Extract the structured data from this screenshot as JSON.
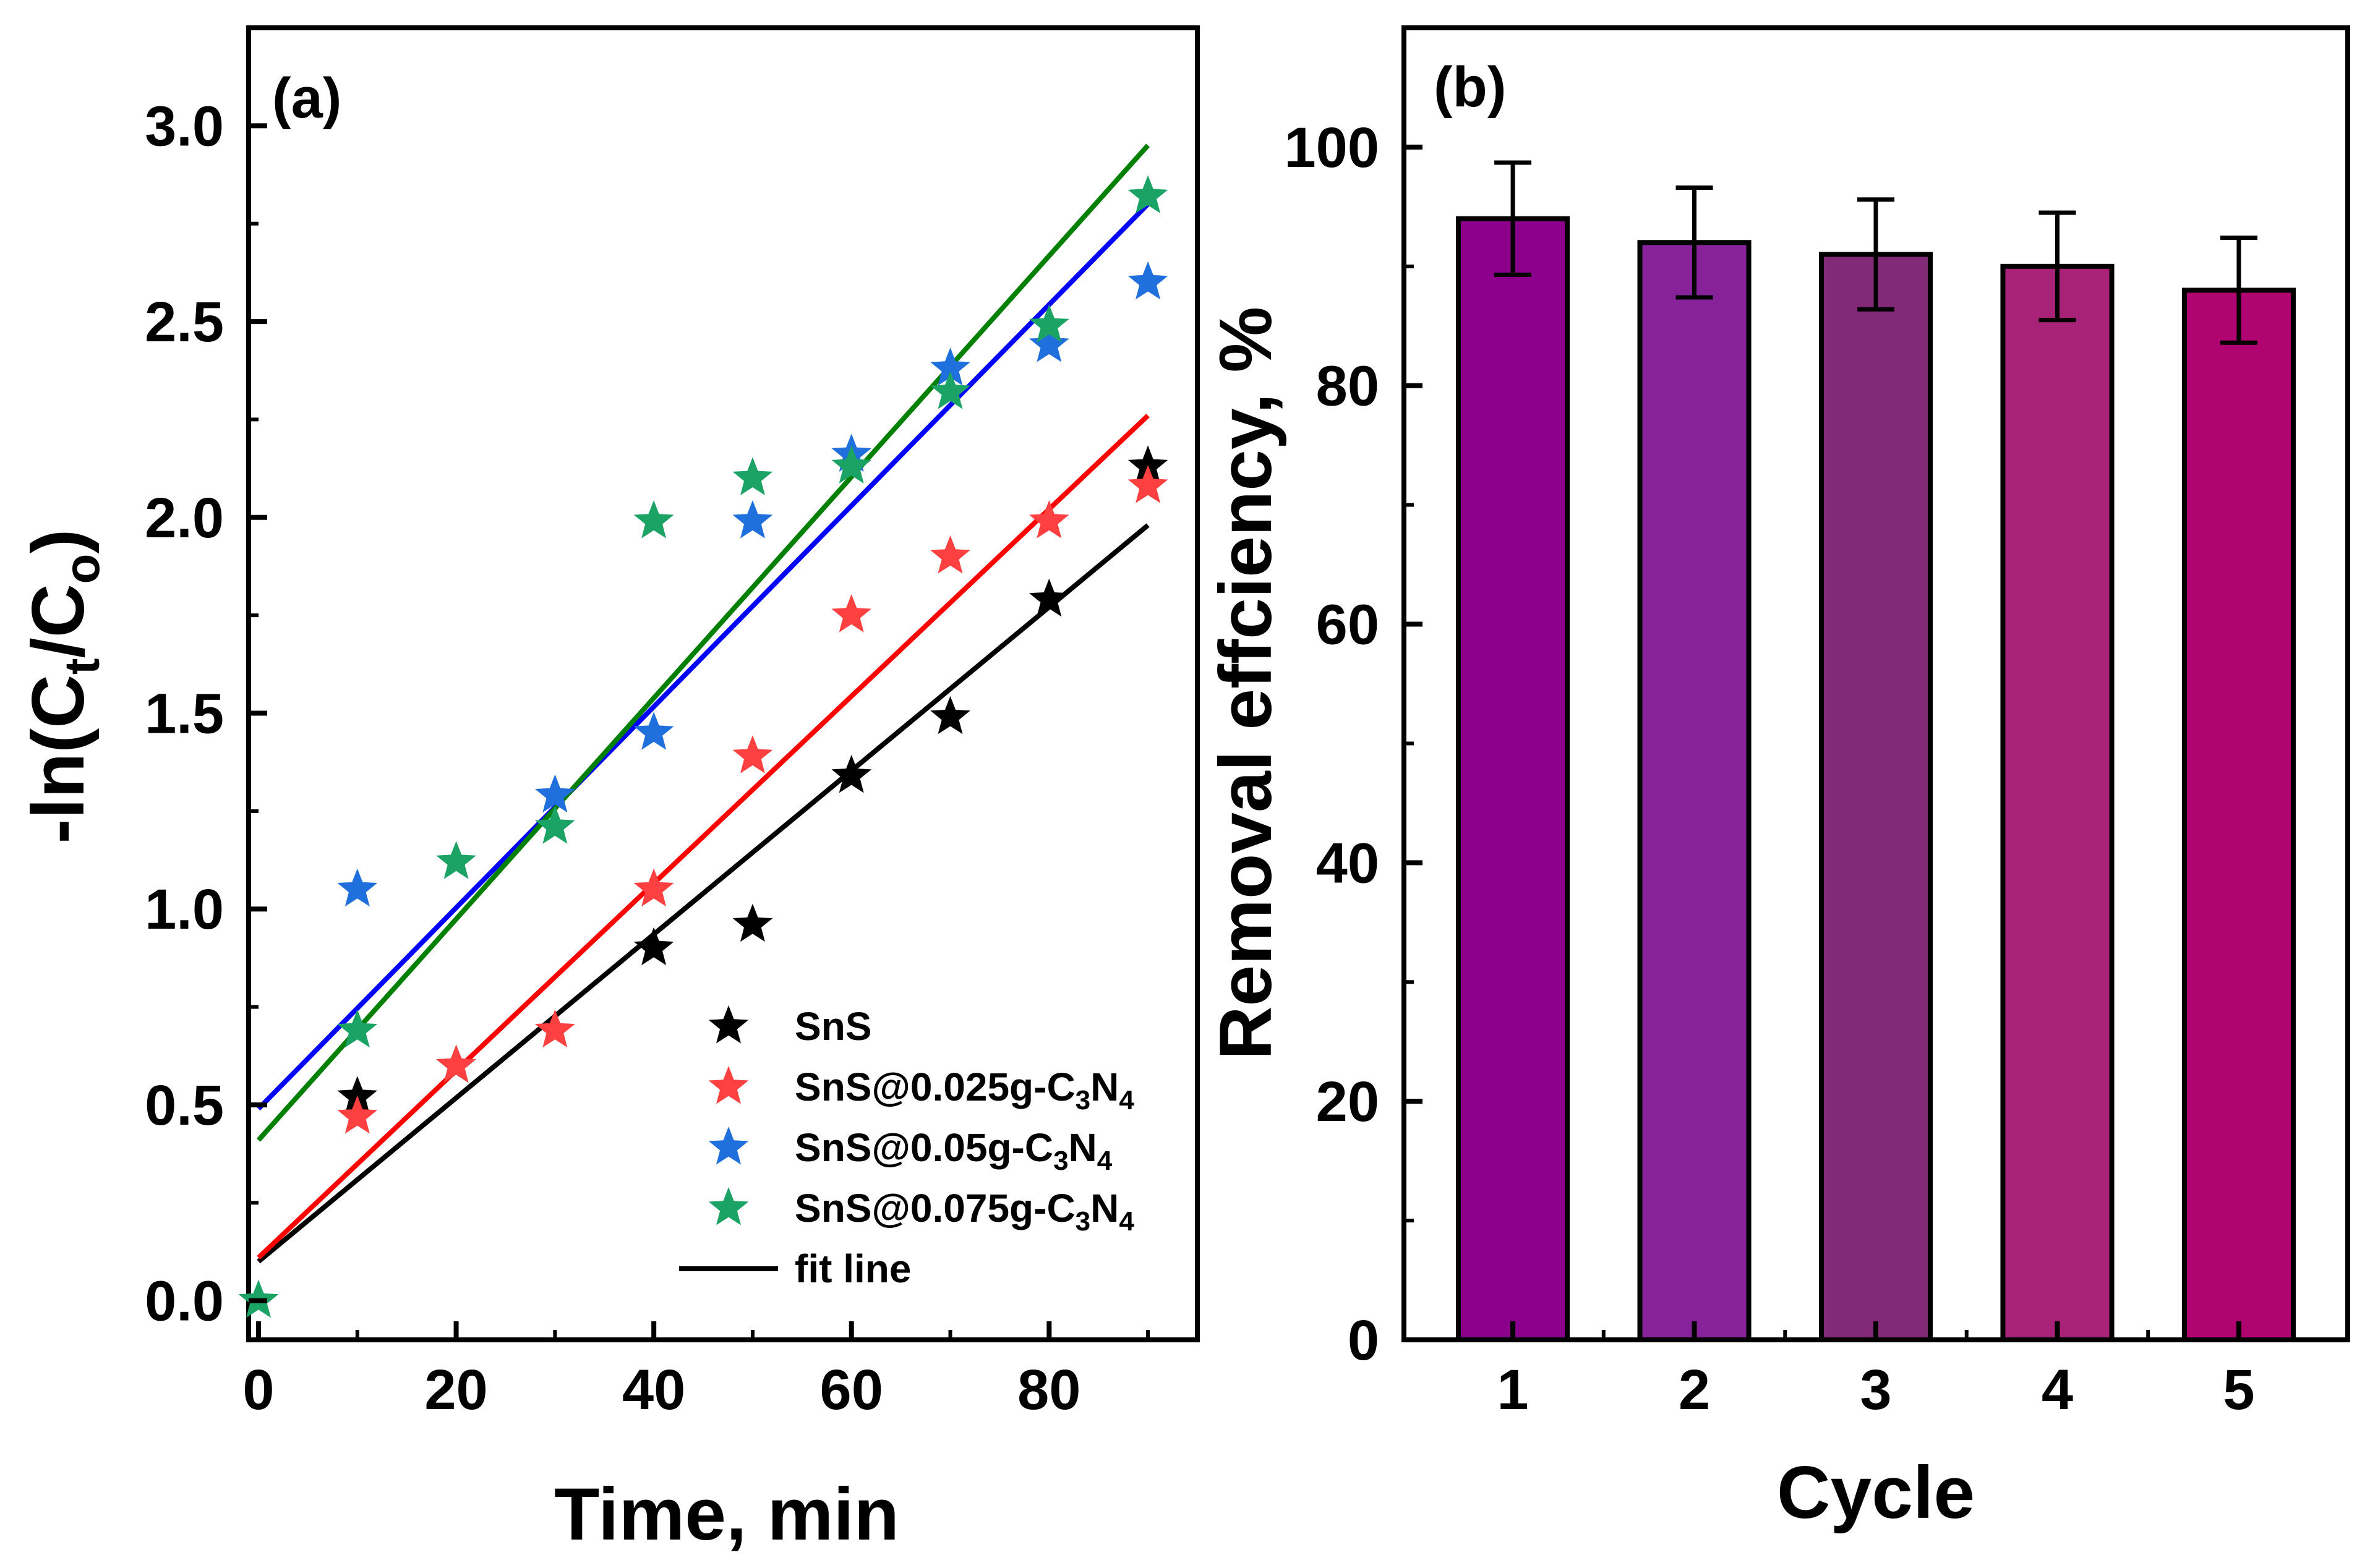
{
  "chart_data": [
    {
      "type": "scatter",
      "panel_label": "(a)",
      "xlabel": "Time, min",
      "ylabel": {
        "main": "-ln(C",
        "sub1": "t",
        "mid": "/C",
        "sub2": "o",
        "end": ")"
      },
      "xlim": [
        -1,
        95
      ],
      "ylim": [
        -0.1,
        3.25
      ],
      "xticks": [
        0,
        20,
        40,
        60,
        80
      ],
      "xtick_labels": [
        "0",
        "20",
        "40",
        "60",
        "80"
      ],
      "yticks": [
        0.0,
        0.5,
        1.0,
        1.5,
        2.0,
        2.5,
        3.0
      ],
      "ytick_labels": [
        "0.0",
        "0.5",
        "1.0",
        "1.5",
        "2.0",
        "2.5",
        "3.0"
      ],
      "x": [
        0,
        10,
        20,
        30,
        40,
        50,
        60,
        70,
        80,
        90
      ],
      "series": [
        {
          "key": "sns",
          "legend": {
            "parts": [
              "SnS"
            ]
          },
          "color": "#000000",
          "values": [
            null,
            0.52,
            0.6,
            null,
            0.9,
            0.96,
            1.34,
            1.49,
            1.79,
            2.13
          ],
          "fit": [
            0.1,
            1.98
          ]
        },
        {
          "key": "sns025",
          "legend": {
            "parts": [
              "SnS@0.025g-C",
              "3",
              "N",
              "4"
            ]
          },
          "color": "#ff4040",
          "values": [
            null,
            0.47,
            0.6,
            0.69,
            1.05,
            1.39,
            1.75,
            1.9,
            1.99,
            2.08
          ],
          "fit": [
            0.11,
            2.26
          ]
        },
        {
          "key": "sns05",
          "legend": {
            "parts": [
              "SnS@0.05g-C",
              "3",
              "N",
              "4"
            ]
          },
          "color": "#1f6fdc",
          "values": [
            null,
            1.05,
            null,
            1.29,
            1.45,
            1.99,
            2.16,
            2.38,
            2.44,
            2.6
          ],
          "fit": [
            0.49,
            2.8
          ]
        },
        {
          "key": "sns075",
          "legend": {
            "parts": [
              "SnS@0.075g-C",
              "3",
              "N",
              "4"
            ]
          },
          "color": "#1aa364",
          "values": [
            0.0,
            0.69,
            1.12,
            1.21,
            1.99,
            2.1,
            2.13,
            2.32,
            2.49,
            2.82
          ],
          "fit": [
            0.41,
            2.95
          ]
        }
      ],
      "fit_line_colors": {
        "sns": "#000000",
        "sns025": "#ff0000",
        "sns05": "#0000ff",
        "sns075": "#008000"
      },
      "fit_legend": "fit line"
    },
    {
      "type": "bar",
      "panel_label": "(b)",
      "xlabel": "Cycle",
      "ylabel": "Removal effciency, %",
      "categories": [
        "1",
        "2",
        "3",
        "4",
        "5"
      ],
      "values": [
        94,
        92,
        91,
        90,
        88
      ],
      "errors": [
        4.7,
        4.6,
        4.6,
        4.5,
        4.4
      ],
      "colors": [
        "#8b008b",
        "#86229a",
        "#822a78",
        "#a82277",
        "#b00571"
      ],
      "ylim": [
        0,
        110
      ],
      "yticks": [
        0,
        20,
        40,
        60,
        80,
        100
      ],
      "ytick_labels": [
        "0",
        "20",
        "40",
        "60",
        "80",
        "100"
      ]
    }
  ]
}
